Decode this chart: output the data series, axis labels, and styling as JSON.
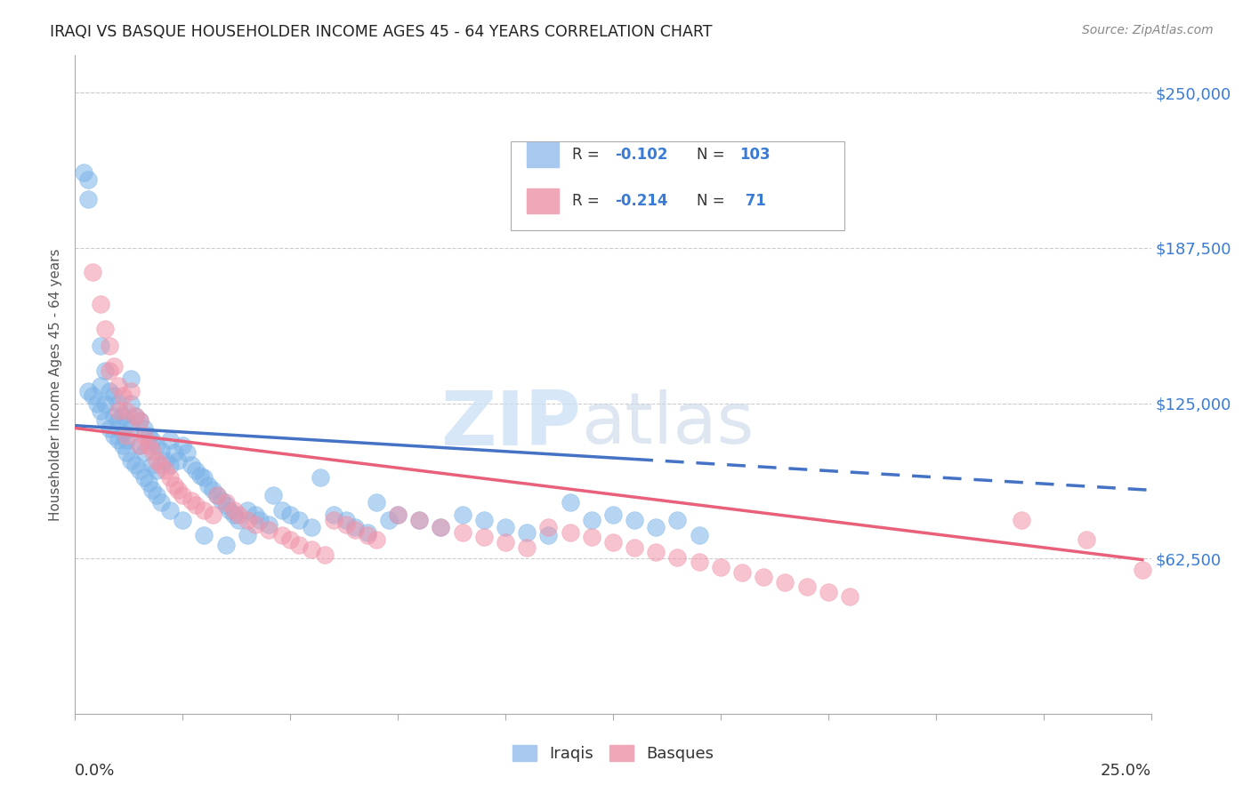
{
  "title": "IRAQI VS BASQUE HOUSEHOLDER INCOME AGES 45 - 64 YEARS CORRELATION CHART",
  "source": "Source: ZipAtlas.com",
  "ylabel": "Householder Income Ages 45 - 64 years",
  "ytick_labels": [
    "$62,500",
    "$125,000",
    "$187,500",
    "$250,000"
  ],
  "ytick_values": [
    62500,
    125000,
    187500,
    250000
  ],
  "xlim": [
    0.0,
    0.25
  ],
  "ylim": [
    0,
    265000
  ],
  "iraqis_color": "#7ab3e8",
  "basques_color": "#f093a8",
  "iraqis_line_color": "#4472c4",
  "basques_line_color": "#e8607a",
  "watermark_zip": "ZIP",
  "watermark_atlas": "atlas",
  "R_iraqis": "-0.102",
  "N_iraqis": "103",
  "R_basques": "-0.214",
  "N_basques": "71",
  "iraqis_x": [
    0.002,
    0.003,
    0.003,
    0.006,
    0.006,
    0.007,
    0.007,
    0.008,
    0.009,
    0.009,
    0.01,
    0.01,
    0.011,
    0.011,
    0.012,
    0.012,
    0.013,
    0.013,
    0.013,
    0.014,
    0.015,
    0.015,
    0.016,
    0.016,
    0.017,
    0.018,
    0.018,
    0.019,
    0.019,
    0.02,
    0.021,
    0.022,
    0.022,
    0.023,
    0.024,
    0.025,
    0.026,
    0.027,
    0.028,
    0.029,
    0.03,
    0.031,
    0.032,
    0.033,
    0.034,
    0.035,
    0.036,
    0.037,
    0.038,
    0.04,
    0.042,
    0.043,
    0.045,
    0.046,
    0.048,
    0.05,
    0.052,
    0.055,
    0.057,
    0.06,
    0.063,
    0.065,
    0.068,
    0.07,
    0.073,
    0.075,
    0.08,
    0.085,
    0.09,
    0.095,
    0.1,
    0.105,
    0.11,
    0.115,
    0.12,
    0.125,
    0.13,
    0.135,
    0.14,
    0.145,
    0.003,
    0.004,
    0.005,
    0.006,
    0.007,
    0.008,
    0.009,
    0.01,
    0.011,
    0.012,
    0.013,
    0.014,
    0.015,
    0.016,
    0.017,
    0.018,
    0.019,
    0.02,
    0.022,
    0.025,
    0.03,
    0.035,
    0.04
  ],
  "iraqis_y": [
    218000,
    215000,
    207000,
    148000,
    132000,
    138000,
    125000,
    130000,
    128000,
    120000,
    125000,
    118000,
    120000,
    113000,
    118000,
    110000,
    135000,
    125000,
    115000,
    120000,
    118000,
    108000,
    115000,
    105000,
    112000,
    110000,
    100000,
    108000,
    98000,
    106000,
    102000,
    110000,
    100000,
    105000,
    102000,
    108000,
    105000,
    100000,
    98000,
    96000,
    95000,
    92000,
    90000,
    88000,
    86000,
    84000,
    82000,
    80000,
    78000,
    82000,
    80000,
    78000,
    76000,
    88000,
    82000,
    80000,
    78000,
    75000,
    95000,
    80000,
    78000,
    75000,
    73000,
    85000,
    78000,
    80000,
    78000,
    75000,
    80000,
    78000,
    75000,
    73000,
    72000,
    85000,
    78000,
    80000,
    78000,
    75000,
    78000,
    72000,
    130000,
    128000,
    125000,
    122000,
    118000,
    115000,
    112000,
    110000,
    108000,
    105000,
    102000,
    100000,
    98000,
    95000,
    93000,
    90000,
    88000,
    85000,
    82000,
    78000,
    72000,
    68000,
    72000
  ],
  "basques_x": [
    0.004,
    0.006,
    0.007,
    0.008,
    0.008,
    0.009,
    0.01,
    0.01,
    0.011,
    0.012,
    0.012,
    0.013,
    0.014,
    0.015,
    0.015,
    0.016,
    0.017,
    0.018,
    0.019,
    0.02,
    0.021,
    0.022,
    0.023,
    0.024,
    0.025,
    0.027,
    0.028,
    0.03,
    0.032,
    0.033,
    0.035,
    0.037,
    0.038,
    0.04,
    0.042,
    0.045,
    0.048,
    0.05,
    0.052,
    0.055,
    0.058,
    0.06,
    0.063,
    0.065,
    0.068,
    0.07,
    0.075,
    0.08,
    0.085,
    0.09,
    0.095,
    0.1,
    0.105,
    0.11,
    0.115,
    0.12,
    0.125,
    0.13,
    0.135,
    0.14,
    0.145,
    0.15,
    0.155,
    0.16,
    0.165,
    0.17,
    0.175,
    0.18,
    0.22,
    0.235,
    0.248
  ],
  "basques_y": [
    178000,
    165000,
    155000,
    148000,
    138000,
    140000,
    132000,
    122000,
    128000,
    122000,
    112000,
    130000,
    120000,
    118000,
    108000,
    112000,
    108000,
    106000,
    102000,
    100000,
    98000,
    95000,
    92000,
    90000,
    88000,
    86000,
    84000,
    82000,
    80000,
    88000,
    85000,
    82000,
    80000,
    78000,
    76000,
    74000,
    72000,
    70000,
    68000,
    66000,
    64000,
    78000,
    76000,
    74000,
    72000,
    70000,
    80000,
    78000,
    75000,
    73000,
    71000,
    69000,
    67000,
    75000,
    73000,
    71000,
    69000,
    67000,
    65000,
    63000,
    61000,
    59000,
    57000,
    55000,
    53000,
    51000,
    49000,
    47000,
    78000,
    70000,
    58000
  ]
}
